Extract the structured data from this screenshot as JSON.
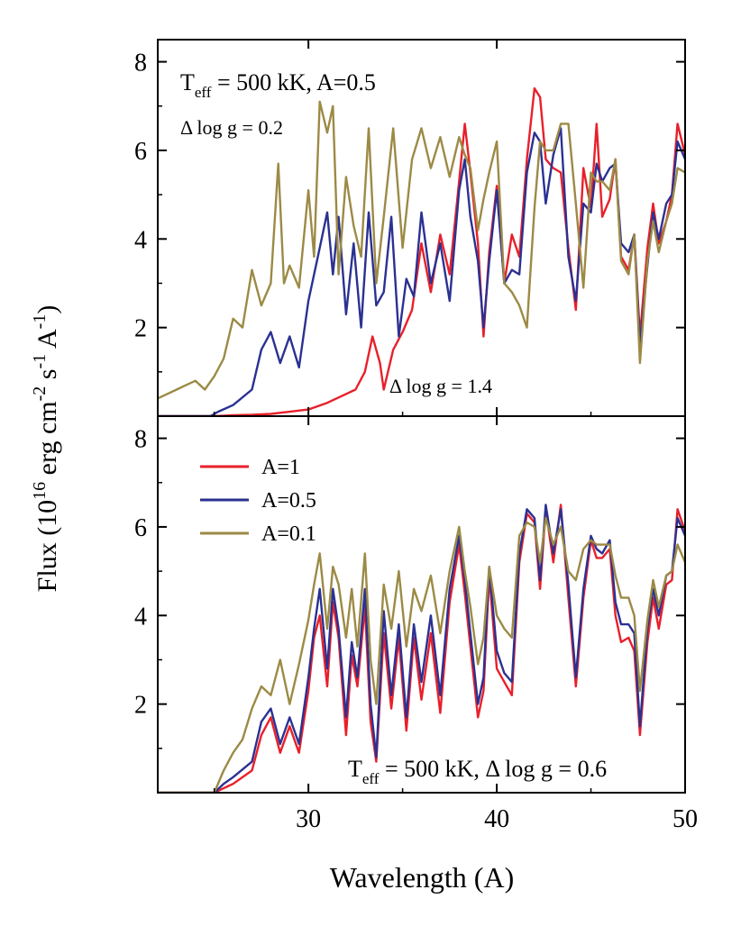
{
  "figure": {
    "ylabel_main": "Flux (10",
    "ylabel_exp1": "16",
    "ylabel_mid": " erg cm",
    "ylabel_exp2": "-2",
    "ylabel_s": " s",
    "ylabel_exp3": "-1",
    "ylabel_A": " A",
    "ylabel_exp4": "-1",
    "ylabel_close": ")",
    "xlabel": "Wavelength (A)"
  },
  "annotations": {
    "top_teff_T": "T",
    "top_teff_sub": "eff",
    "top_teff_rest": " = 500 kK, A=0.5",
    "top_dlogg_left": "Δ log g = 0.2",
    "top_dlogg_right": "Δ log g = 1.4",
    "bottom_teff_T": "T",
    "bottom_teff_sub": "eff",
    "bottom_teff_rest": " = 500 kK, Δ log g = 0.6"
  },
  "colors": {
    "red": "#e8202a",
    "blue": "#2b3192",
    "olive": "#9c8a45"
  },
  "chart_data": [
    {
      "type": "line",
      "panel": "top",
      "xlim": [
        22,
        50
      ],
      "ylim": [
        0,
        8.5
      ],
      "x_ticks": [
        30,
        40,
        50
      ],
      "y_ticks": [
        2,
        4,
        6,
        8
      ],
      "series": [
        {
          "color": "#e8202a",
          "x": [
            22,
            25,
            26,
            27,
            28,
            29,
            30,
            31,
            32,
            32.5,
            33,
            33.4,
            33.8,
            34,
            34.5,
            35,
            35.5,
            36,
            36.5,
            37,
            37.5,
            38,
            38.3,
            38.6,
            39,
            39.3,
            39.6,
            40,
            40.4,
            40.8,
            41.2,
            41.6,
            42,
            42.3,
            42.6,
            43,
            43.4,
            43.8,
            44.2,
            44.6,
            45,
            45.3,
            45.6,
            46,
            46.3,
            46.6,
            47,
            47.3,
            47.6,
            48,
            48.3,
            48.6,
            49,
            49.3,
            49.6,
            50
          ],
          "y": [
            0,
            0,
            0.02,
            0.03,
            0.05,
            0.1,
            0.15,
            0.3,
            0.5,
            0.6,
            1.0,
            1.8,
            1.2,
            0.6,
            1.5,
            1.9,
            2.4,
            3.9,
            2.8,
            4.1,
            3.2,
            5.3,
            6.6,
            5.5,
            3.9,
            1.8,
            3.7,
            5.2,
            3.0,
            4.1,
            3.6,
            5.8,
            7.4,
            7.2,
            5.8,
            5.6,
            5.5,
            3.8,
            2.4,
            5.6,
            4.7,
            6.6,
            4.5,
            4.9,
            5.8,
            3.6,
            3.3,
            4.1,
            1.8,
            3.8,
            4.8,
            3.9,
            4.4,
            5.0,
            6.6,
            5.9
          ]
        },
        {
          "color": "#2b3192",
          "x": [
            22,
            24.8,
            25.2,
            26,
            27,
            27.5,
            28,
            28.5,
            29,
            29.5,
            30,
            30.5,
            31,
            31.3,
            31.6,
            32,
            32.4,
            32.8,
            33.2,
            33.6,
            34,
            34.4,
            34.8,
            35.2,
            35.6,
            36,
            36.5,
            37,
            37.5,
            38,
            38.3,
            38.6,
            39,
            39.3,
            39.6,
            40,
            40.4,
            40.8,
            41.2,
            41.6,
            42,
            42.3,
            42.6,
            43,
            43.4,
            43.8,
            44.2,
            44.6,
            45,
            45.3,
            45.6,
            46,
            46.3,
            46.6,
            47,
            47.3,
            47.6,
            48,
            48.3,
            48.6,
            49,
            49.3,
            49.6,
            50
          ],
          "y": [
            0,
            0,
            0.1,
            0.25,
            0.6,
            1.5,
            1.9,
            1.2,
            1.8,
            1.1,
            2.6,
            3.6,
            4.6,
            3.2,
            4.5,
            2.3,
            3.9,
            2.0,
            4.6,
            2.5,
            2.8,
            4.5,
            1.8,
            3.1,
            2.7,
            4.6,
            3.0,
            3.9,
            2.6,
            5.1,
            5.8,
            4.5,
            3.5,
            2.0,
            3.5,
            5.1,
            3.0,
            3.3,
            3.2,
            5.5,
            6.4,
            6.2,
            4.8,
            5.9,
            6.5,
            3.6,
            2.6,
            4.8,
            4.6,
            5.7,
            5.3,
            5.6,
            5.7,
            3.9,
            3.7,
            4.1,
            1.6,
            3.4,
            4.6,
            4.0,
            4.8,
            5.0,
            6.2,
            5.8
          ]
        },
        {
          "color": "#9c8a45",
          "x": [
            22,
            22.5,
            23,
            23.5,
            24,
            24.5,
            25,
            25.5,
            26,
            26.5,
            27,
            27.5,
            28,
            28.4,
            28.7,
            29,
            29.5,
            30,
            30.3,
            30.6,
            31,
            31.3,
            31.6,
            32,
            32.4,
            32.8,
            33.2,
            33.6,
            34,
            34.5,
            35,
            35.5,
            36,
            36.5,
            37,
            37.5,
            38,
            38.3,
            38.6,
            39,
            39.3,
            39.6,
            40,
            40.4,
            40.8,
            41.2,
            41.6,
            42,
            42.3,
            42.6,
            43,
            43.4,
            43.8,
            44.2,
            44.6,
            45,
            45.3,
            45.6,
            46,
            46.3,
            46.6,
            47,
            47.3,
            47.6,
            48,
            48.3,
            48.6,
            49,
            49.3,
            49.6,
            50
          ],
          "y": [
            0.4,
            0.5,
            0.6,
            0.7,
            0.8,
            0.6,
            0.9,
            1.3,
            2.2,
            2.0,
            3.3,
            2.5,
            3.0,
            5.7,
            3.0,
            3.4,
            2.9,
            5.1,
            3.6,
            7.1,
            6.4,
            7.0,
            3.2,
            5.4,
            4.3,
            3.6,
            6.5,
            3.0,
            4.5,
            6.5,
            3.8,
            5.8,
            6.5,
            5.6,
            6.3,
            5.4,
            6.3,
            5.9,
            5.6,
            4.2,
            4.9,
            5.5,
            6.2,
            3.0,
            2.8,
            2.5,
            2.0,
            4.7,
            6.2,
            6.0,
            6.0,
            6.6,
            6.6,
            4.8,
            2.9,
            5.5,
            5.3,
            5.3,
            5.1,
            5.8,
            3.5,
            3.2,
            4.1,
            1.2,
            3.5,
            4.4,
            3.7,
            4.4,
            4.8,
            5.6,
            5.5
          ]
        }
      ]
    },
    {
      "type": "line",
      "panel": "bottom",
      "xlim": [
        22,
        50
      ],
      "ylim": [
        0,
        8.5
      ],
      "x_ticks": [
        30,
        40,
        50
      ],
      "y_ticks": [
        2,
        4,
        6,
        8
      ],
      "legend": {
        "placement": "top-left",
        "entries": [
          "A=1",
          "A=0.5",
          "A=0.1"
        ]
      },
      "series": [
        {
          "name": "A=1",
          "color": "#e8202a",
          "x": [
            22,
            25,
            25.5,
            26,
            27,
            27.5,
            28,
            28.5,
            29,
            29.5,
            30,
            30.3,
            30.6,
            31,
            31.3,
            31.6,
            32,
            32.3,
            32.6,
            33,
            33.3,
            33.6,
            34,
            34.4,
            34.8,
            35.2,
            35.6,
            36,
            36.5,
            37,
            37.5,
            38,
            38.3,
            38.6,
            39,
            39.3,
            39.6,
            40,
            40.4,
            40.8,
            41.2,
            41.6,
            42,
            42.3,
            42.6,
            43,
            43.4,
            43.8,
            44.2,
            44.6,
            45,
            45.3,
            45.6,
            46,
            46.3,
            46.6,
            47,
            47.3,
            47.6,
            48,
            48.3,
            48.6,
            49,
            49.3,
            49.6,
            50
          ],
          "y": [
            0,
            0,
            0.1,
            0.2,
            0.5,
            1.3,
            1.7,
            0.9,
            1.5,
            0.9,
            2.3,
            3.5,
            4.0,
            2.4,
            4.3,
            3.5,
            1.3,
            3.1,
            2.4,
            4.2,
            1.6,
            0.7,
            3.6,
            1.9,
            3.5,
            1.4,
            3.5,
            2.1,
            3.6,
            1.8,
            4.3,
            5.6,
            4.5,
            3.3,
            1.7,
            2.3,
            4.9,
            2.8,
            2.5,
            2.2,
            5.2,
            6.3,
            6.1,
            4.6,
            6.4,
            5.2,
            6.5,
            4.4,
            2.4,
            4.4,
            5.7,
            5.3,
            5.3,
            5.5,
            4.0,
            3.4,
            3.5,
            3.2,
            1.3,
            3.4,
            4.4,
            3.7,
            4.7,
            4.8,
            6.4,
            5.9
          ]
        },
        {
          "name": "A=0.5",
          "color": "#2b3192",
          "x": [
            22,
            25,
            25.5,
            26,
            27,
            27.5,
            28,
            28.5,
            29,
            29.5,
            30,
            30.3,
            30.6,
            31,
            31.3,
            31.6,
            32,
            32.3,
            32.6,
            33,
            33.3,
            33.6,
            34,
            34.4,
            34.8,
            35.2,
            35.6,
            36,
            36.5,
            37,
            37.5,
            38,
            38.3,
            38.6,
            39,
            39.3,
            39.6,
            40,
            40.4,
            40.8,
            41.2,
            41.6,
            42,
            42.3,
            42.6,
            43,
            43.4,
            43.8,
            44.2,
            44.6,
            45,
            45.3,
            45.6,
            46,
            46.3,
            46.6,
            47,
            47.3,
            47.6,
            48,
            48.3,
            48.6,
            49,
            49.3,
            49.6,
            50
          ],
          "y": [
            0,
            0,
            0.2,
            0.35,
            0.7,
            1.6,
            1.9,
            1.1,
            1.7,
            1.1,
            2.6,
            3.7,
            4.6,
            2.8,
            4.6,
            3.7,
            1.7,
            3.4,
            2.6,
            4.6,
            2.0,
            0.8,
            4.1,
            2.2,
            3.8,
            1.7,
            3.8,
            2.5,
            4.0,
            2.2,
            4.6,
            5.8,
            4.8,
            3.6,
            2.0,
            2.6,
            5.1,
            3.2,
            2.7,
            2.5,
            5.4,
            6.4,
            6.2,
            4.8,
            6.5,
            5.4,
            6.4,
            4.7,
            2.6,
            4.6,
            5.8,
            5.5,
            5.4,
            5.7,
            4.3,
            3.8,
            3.8,
            3.6,
            1.5,
            3.7,
            4.6,
            4.0,
            4.9,
            5.0,
            6.2,
            5.8
          ]
        },
        {
          "name": "A=0.1",
          "color": "#9c8a45",
          "x": [
            22,
            25,
            25.5,
            26,
            26.5,
            27,
            27.5,
            28,
            28.5,
            29,
            29.5,
            30,
            30.3,
            30.6,
            31,
            31.3,
            31.6,
            32,
            32.3,
            32.6,
            33,
            33.3,
            33.6,
            34,
            34.4,
            34.8,
            35.2,
            35.6,
            36,
            36.5,
            37,
            37.5,
            38,
            38.3,
            38.6,
            39,
            39.3,
            39.6,
            40,
            40.4,
            40.8,
            41.2,
            41.6,
            42,
            42.3,
            42.6,
            43,
            43.4,
            43.8,
            44.2,
            44.6,
            45,
            45.3,
            45.6,
            46,
            46.3,
            46.6,
            47,
            47.3,
            47.6,
            48,
            48.3,
            48.6,
            49,
            49.3,
            49.6,
            50
          ],
          "y": [
            0,
            0,
            0.5,
            0.9,
            1.2,
            1.9,
            2.4,
            2.2,
            3.0,
            2.0,
            2.9,
            3.9,
            4.7,
            5.4,
            3.7,
            5.1,
            4.7,
            3.5,
            4.6,
            3.3,
            5.4,
            3.0,
            2.0,
            4.7,
            3.7,
            5.0,
            3.3,
            4.6,
            4.1,
            4.9,
            3.6,
            5.0,
            6.0,
            5.0,
            4.2,
            2.9,
            3.5,
            5.1,
            4.0,
            3.7,
            3.5,
            5.8,
            6.1,
            6.0,
            5.2,
            6.2,
            5.6,
            6.0,
            5.0,
            4.8,
            5.5,
            5.7,
            5.6,
            5.6,
            5.6,
            4.9,
            4.4,
            4.4,
            4.0,
            2.3,
            3.9,
            4.8,
            4.2,
            4.9,
            5.0,
            5.6,
            5.2
          ]
        }
      ]
    }
  ]
}
